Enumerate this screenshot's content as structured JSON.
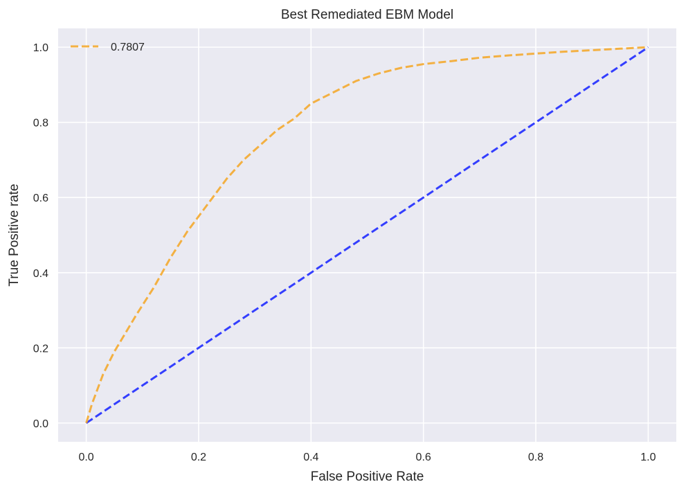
{
  "chart_data": {
    "type": "line",
    "title": "Best Remediated EBM Model",
    "xlabel": "False Positive Rate",
    "ylabel": "True Positive rate",
    "xlim": [
      -0.05,
      1.05
    ],
    "ylim": [
      -0.05,
      1.05
    ],
    "x_ticks": [
      0.0,
      0.2,
      0.4,
      0.6,
      0.8,
      1.0
    ],
    "y_ticks": [
      0.0,
      0.2,
      0.4,
      0.6,
      0.8,
      1.0
    ],
    "x_tick_labels": [
      "0.0",
      "0.2",
      "0.4",
      "0.6",
      "0.8",
      "1.0"
    ],
    "y_tick_labels": [
      "0.0",
      "0.2",
      "0.4",
      "0.6",
      "0.8",
      "1.0"
    ],
    "grid": true,
    "background": "#eaeaf2",
    "legend_position": "top-left",
    "series": [
      {
        "name": "0.7807",
        "color": "#f5a623",
        "style": "dashed",
        "x": [
          0.0,
          0.01,
          0.02,
          0.03,
          0.05,
          0.07,
          0.09,
          0.12,
          0.15,
          0.18,
          0.21,
          0.25,
          0.28,
          0.31,
          0.34,
          0.37,
          0.4,
          0.44,
          0.48,
          0.52,
          0.56,
          0.6,
          0.65,
          0.7,
          0.75,
          0.8,
          0.85,
          0.9,
          0.95,
          1.0
        ],
        "y": [
          0.0,
          0.05,
          0.09,
          0.13,
          0.19,
          0.24,
          0.29,
          0.36,
          0.44,
          0.51,
          0.57,
          0.65,
          0.7,
          0.74,
          0.78,
          0.81,
          0.85,
          0.88,
          0.91,
          0.93,
          0.945,
          0.955,
          0.963,
          0.972,
          0.978,
          0.983,
          0.988,
          0.992,
          0.996,
          1.0
        ]
      },
      {
        "color": "#1f2bff",
        "style": "dashed",
        "x": [
          0.0,
          1.0
        ],
        "y": [
          0.0,
          1.0
        ]
      }
    ]
  }
}
